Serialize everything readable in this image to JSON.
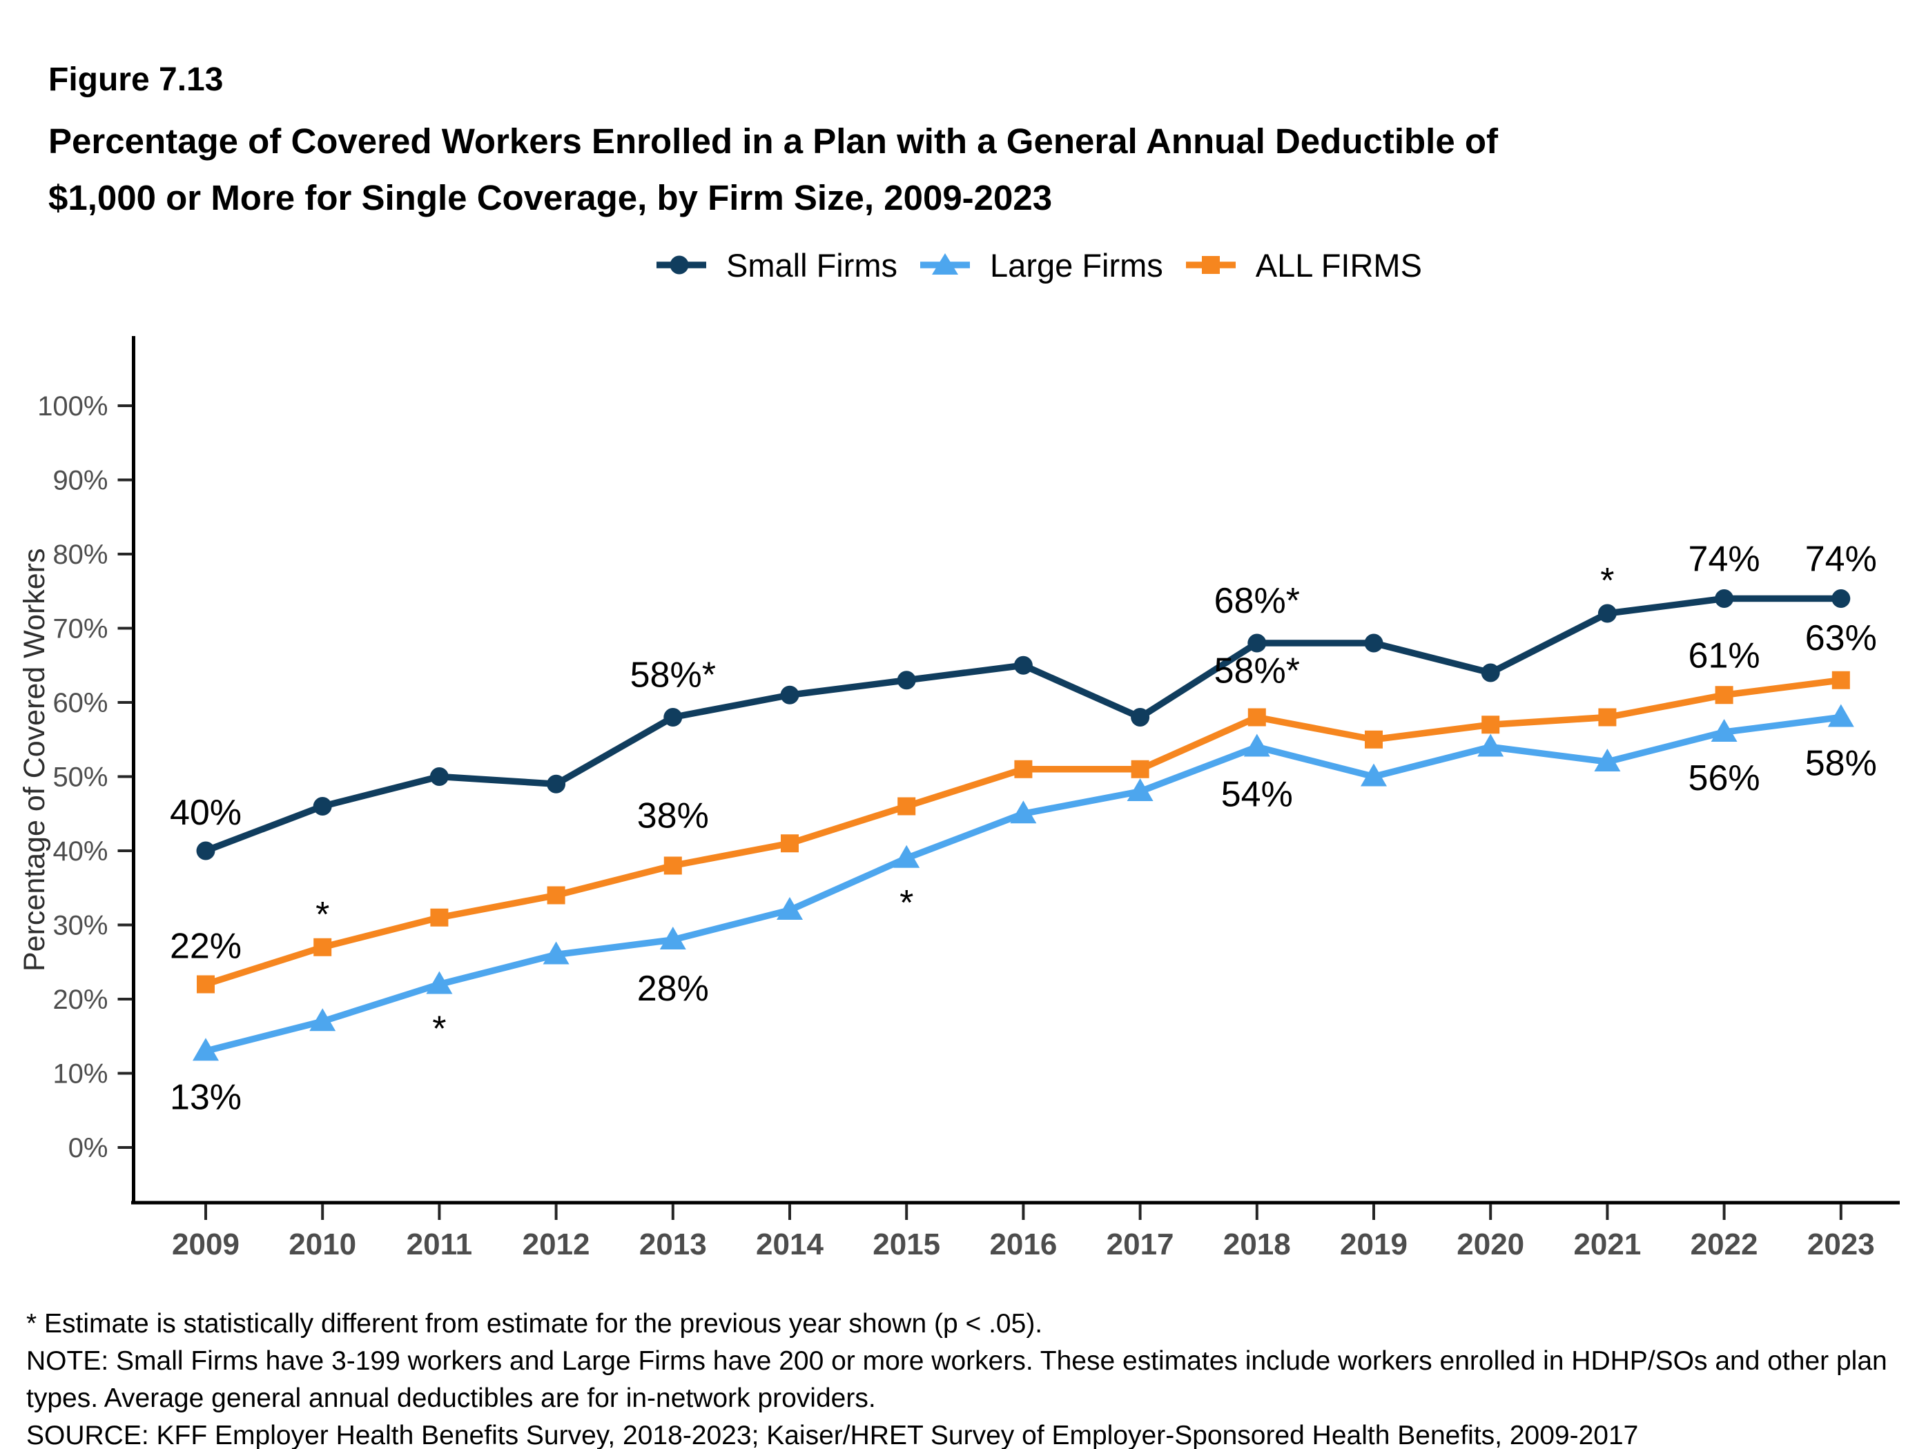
{
  "figure_label": "Figure 7.13",
  "title_lines": [
    "Percentage of Covered Workers Enrolled in a Plan with a General Annual Deductible of",
    "$1,000 or More for Single Coverage, by Firm Size, 2009-2023"
  ],
  "legend": {
    "items": [
      {
        "label": "Small Firms",
        "marker": "circle",
        "color": "#103D5E"
      },
      {
        "label": "Large Firms",
        "marker": "triangle",
        "color": "#4DA6EE"
      },
      {
        "label": "ALL FIRMS",
        "marker": "square",
        "color": "#F6861F"
      }
    ]
  },
  "chart_data": {
    "type": "line",
    "title": "Percentage of Covered Workers Enrolled in a Plan with a General Annual Deductible of $1,000 or More for Single Coverage, by Firm Size, 2009-2023",
    "xlabel": "",
    "ylabel": "Percentage of Covered Workers",
    "x_categories": [
      "2009",
      "2010",
      "2011",
      "2012",
      "2013",
      "2014",
      "2015",
      "2016",
      "2017",
      "2018",
      "2019",
      "2020",
      "2021",
      "2022",
      "2023"
    ],
    "ylim": [
      0,
      100
    ],
    "ytick_values": [
      0,
      10,
      20,
      30,
      40,
      50,
      60,
      70,
      80,
      90,
      100
    ],
    "ytick_labels": [
      "0%",
      "10%",
      "20%",
      "30%",
      "40%",
      "50%",
      "60%",
      "70%",
      "80%",
      "90%",
      "100%"
    ],
    "grid": false,
    "legend_position": "top",
    "series": [
      {
        "name": "Small Firms",
        "marker": "circle",
        "color": "#103D5E",
        "values": [
          40,
          46,
          50,
          49,
          58,
          61,
          63,
          65,
          58,
          68,
          68,
          64,
          72,
          74,
          74
        ]
      },
      {
        "name": "Large Firms",
        "marker": "triangle",
        "color": "#4DA6EE",
        "values": [
          13,
          17,
          22,
          26,
          28,
          32,
          39,
          45,
          48,
          54,
          50,
          54,
          52,
          56,
          58
        ]
      },
      {
        "name": "ALL FIRMS",
        "marker": "square",
        "color": "#F6861F",
        "values": [
          22,
          27,
          31,
          34,
          38,
          41,
          46,
          51,
          51,
          58,
          55,
          57,
          58,
          61,
          63
        ]
      }
    ],
    "annotations": [
      {
        "text": "40%",
        "year_index": 0,
        "pct": 40,
        "dy": -38
      },
      {
        "text": "22%",
        "year_index": 0,
        "pct": 22,
        "dy": -38
      },
      {
        "text": "13%",
        "year_index": 0,
        "pct": 13,
        "dy": 84
      },
      {
        "text": "*",
        "year_index": 1,
        "pct": 27,
        "dy": -30
      },
      {
        "text": "*",
        "year_index": 2,
        "pct": 22,
        "dy": 82
      },
      {
        "text": "58%*",
        "year_index": 4,
        "pct": 58,
        "dy": -44
      },
      {
        "text": "38%",
        "year_index": 4,
        "pct": 38,
        "dy": -55
      },
      {
        "text": "28%",
        "year_index": 4,
        "pct": 28,
        "dy": 88
      },
      {
        "text": "*",
        "year_index": 6,
        "pct": 39,
        "dy": 82
      },
      {
        "text": "68%*",
        "year_index": 9,
        "pct": 68,
        "dy": -44
      },
      {
        "text": "58%*",
        "year_index": 9,
        "pct": 58,
        "dy": -50
      },
      {
        "text": "54%",
        "year_index": 9,
        "pct": 54,
        "dy": 86
      },
      {
        "text": "*",
        "year_index": 12,
        "pct": 72,
        "dy": -30
      },
      {
        "text": "74%",
        "year_index": 13,
        "pct": 74,
        "dy": -40
      },
      {
        "text": "74%",
        "year_index": 14,
        "pct": 74,
        "dy": -40
      },
      {
        "text": "61%",
        "year_index": 13,
        "pct": 61,
        "dy": -40
      },
      {
        "text": "63%",
        "year_index": 14,
        "pct": 63,
        "dy": -44
      },
      {
        "text": "56%",
        "year_index": 13,
        "pct": 56,
        "dy": 84
      },
      {
        "text": "58%",
        "year_index": 14,
        "pct": 58,
        "dy": 84
      }
    ]
  },
  "footnotes": [
    "* Estimate is statistically different from estimate for the previous year shown (p < .05).",
    "NOTE: Small Firms have 3-199 workers and Large Firms have 200 or more workers. These estimates include workers enrolled in HDHP/SOs and other plan",
    "types. Average general annual deductibles are for in-network providers.",
    "SOURCE: KFF Employer Health Benefits Survey, 2018-2023; Kaiser/HRET Survey of Employer-Sponsored Health Benefits, 2009-2017"
  ],
  "colors": {
    "background": "#ffffff",
    "axis_line": "#000000",
    "tick_mark": "#262626",
    "tick_label": "#4d4d4d",
    "annotation_text": "#000000"
  }
}
